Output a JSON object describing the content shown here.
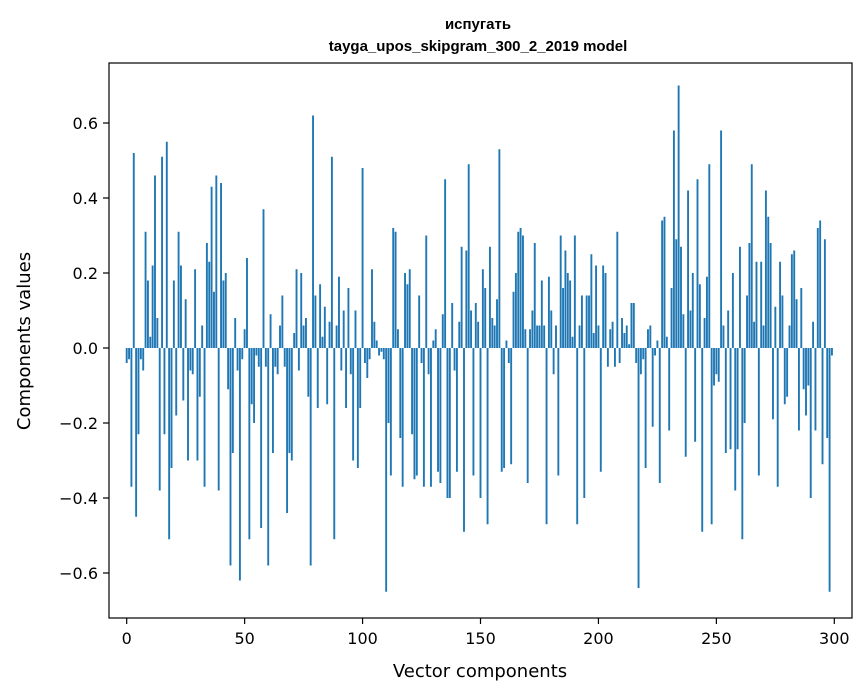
{
  "chart_data": {
    "type": "bar",
    "title_line1": "испугать",
    "title_line2": "tayga_upos_skipgram_300_2_2019 model",
    "xlabel": "Vector components",
    "ylabel": "Components values",
    "xlim": [
      -7.5,
      307.5
    ],
    "ylim": [
      -0.72,
      0.76
    ],
    "xticks": [
      0,
      50,
      100,
      150,
      200,
      250,
      300
    ],
    "xtick_labels": [
      "0",
      "50",
      "100",
      "150",
      "200",
      "250",
      "300"
    ],
    "yticks": [
      -0.6,
      -0.4,
      -0.2,
      0.0,
      0.2,
      0.4,
      0.6
    ],
    "ytick_labels": [
      "−0.6",
      "−0.4",
      "−0.2",
      "0.0",
      "0.2",
      "0.4",
      "0.6"
    ],
    "bar_color": "#1f77b4",
    "categories_note": "x = component index 0..299",
    "values": [
      -0.04,
      -0.03,
      -0.37,
      0.52,
      -0.45,
      -0.23,
      -0.03,
      -0.06,
      0.31,
      0.18,
      0.03,
      0.22,
      0.46,
      0.08,
      -0.38,
      0.51,
      -0.23,
      0.55,
      -0.51,
      -0.32,
      0.18,
      -0.18,
      0.31,
      0.22,
      -0.14,
      0.13,
      -0.3,
      -0.06,
      -0.07,
      0.21,
      -0.3,
      -0.13,
      0.06,
      -0.37,
      0.28,
      0.23,
      0.43,
      0.15,
      0.46,
      -0.38,
      0.44,
      0.18,
      0.2,
      -0.11,
      -0.58,
      -0.28,
      0.08,
      -0.06,
      -0.62,
      -0.03,
      0.05,
      0.24,
      -0.51,
      -0.15,
      -0.2,
      -0.02,
      -0.05,
      -0.48,
      0.37,
      -0.05,
      -0.58,
      0.09,
      -0.28,
      -0.05,
      -0.07,
      0.06,
      0.14,
      -0.05,
      -0.44,
      -0.28,
      -0.3,
      0.04,
      0.21,
      -0.06,
      0.2,
      0.06,
      0.08,
      -0.13,
      -0.58,
      0.62,
      0.14,
      -0.16,
      0.17,
      0.03,
      0.11,
      -0.15,
      0.07,
      0.51,
      -0.51,
      0.06,
      0.19,
      -0.06,
      0.1,
      -0.16,
      0.16,
      -0.07,
      -0.3,
      0.1,
      -0.32,
      -0.16,
      0.48,
      -0.04,
      -0.08,
      -0.03,
      0.21,
      0.07,
      0.02,
      -0.02,
      -0.01,
      -0.03,
      -0.65,
      -0.2,
      -0.34,
      0.32,
      0.31,
      0.05,
      -0.24,
      -0.37,
      0.2,
      0.17,
      0.21,
      -0.23,
      -0.35,
      -0.34,
      0.14,
      -0.04,
      -0.37,
      0.3,
      -0.07,
      -0.37,
      0.02,
      0.05,
      -0.33,
      -0.36,
      0.09,
      0.45,
      -0.4,
      -0.4,
      0.12,
      -0.06,
      -0.33,
      0.07,
      0.27,
      -0.49,
      0.26,
      0.49,
      0.1,
      -0.34,
      0.12,
      0.07,
      -0.4,
      0.21,
      0.16,
      -0.47,
      0.27,
      0.08,
      0.06,
      0.13,
      0.53,
      -0.33,
      -0.32,
      0.02,
      -0.04,
      -0.31,
      0.15,
      0.2,
      0.31,
      0.32,
      0.3,
      0.05,
      -0.36,
      0.05,
      0.1,
      0.28,
      0.06,
      0.06,
      0.18,
      0.06,
      -0.47,
      0.19,
      0.1,
      -0.07,
      0.06,
      -0.34,
      0.3,
      0.16,
      0.26,
      0.2,
      0.18,
      0.03,
      0.3,
      -0.47,
      0.06,
      0.14,
      -0.4,
      0.14,
      0.14,
      0.25,
      0.04,
      0.22,
      0.06,
      -0.33,
      0.22,
      0.2,
      -0.05,
      0.05,
      0.07,
      -0.05,
      0.31,
      -0.04,
      0.08,
      0.04,
      0.06,
      0.01,
      0.12,
      0.12,
      -0.04,
      -0.64,
      -0.07,
      -0.03,
      -0.32,
      0.05,
      0.06,
      -0.21,
      -0.02,
      0.02,
      -0.36,
      0.34,
      0.35,
      0.03,
      -0.22,
      0.16,
      0.58,
      0.29,
      0.7,
      0.27,
      0.09,
      -0.29,
      0.42,
      0.1,
      0.2,
      -0.25,
      0.45,
      0.17,
      -0.49,
      0.08,
      0.19,
      0.49,
      -0.47,
      -0.1,
      -0.07,
      -0.09,
      0.58,
      0.06,
      -0.28,
      0.1,
      -0.27,
      0.2,
      -0.38,
      -0.27,
      0.27,
      -0.51,
      -0.2,
      0.14,
      0.28,
      0.49,
      0.07,
      0.23,
      -0.34,
      0.23,
      0.06,
      0.42,
      0.35,
      0.28,
      -0.19,
      0.11,
      -0.37,
      0.23,
      0.14,
      -0.15,
      -0.13,
      0.06,
      0.25,
      0.26,
      0.13,
      -0.22,
      0.16,
      -0.11,
      -0.18,
      -0.1,
      -0.4,
      0.07,
      -0.22,
      0.32,
      0.34,
      -0.31,
      0.29,
      -0.24,
      -0.65,
      -0.02
    ]
  }
}
